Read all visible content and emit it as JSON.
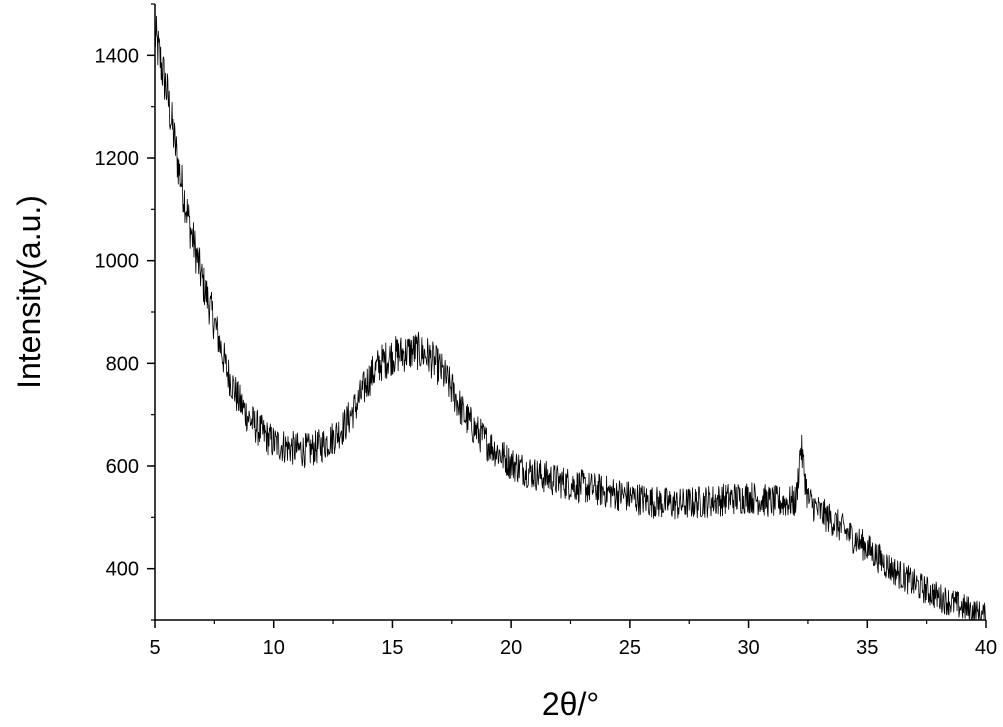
{
  "chart_data": {
    "type": "line",
    "title": "",
    "xlabel": "2θ/°",
    "ylabel": "Intensity(a.u.)",
    "xlim": [
      5,
      40
    ],
    "ylim": [
      300,
      1500
    ],
    "xticks": [
      5,
      10,
      15,
      20,
      25,
      30,
      35,
      40
    ],
    "yticks": [
      400,
      600,
      800,
      1000,
      1200,
      1400
    ],
    "x_tick_labels": [
      "5",
      "10",
      "15",
      "20",
      "25",
      "30",
      "35",
      "40"
    ],
    "y_tick_labels": [
      "400",
      "600",
      "800",
      "1000",
      "1200",
      "1400"
    ],
    "grid": false,
    "legend": "none",
    "line_color": "#000000",
    "series": [
      {
        "x": [
          5,
          5.5,
          6,
          6.5,
          7,
          7.5,
          8,
          8.5,
          9,
          9.5,
          10,
          10.5,
          11,
          11.5,
          12,
          12.5,
          13,
          13.5,
          14,
          14.5,
          15,
          15.5,
          16,
          16.5,
          17,
          17.5,
          18,
          18.5,
          19,
          19.5,
          20,
          21,
          22,
          23,
          24,
          25,
          26,
          27,
          28,
          29,
          30,
          31,
          32,
          32.2,
          32.5,
          33,
          33.5,
          34,
          35,
          36,
          37,
          38,
          39,
          40
        ],
        "y": [
          1440,
          1330,
          1180,
          1060,
          960,
          880,
          790,
          730,
          690,
          665,
          645,
          638,
          632,
          630,
          640,
          655,
          680,
          720,
          770,
          800,
          815,
          820,
          825,
          815,
          790,
          750,
          700,
          670,
          645,
          625,
          605,
          585,
          570,
          560,
          550,
          540,
          530,
          525,
          530,
          535,
          540,
          530,
          530,
          640,
          535,
          510,
          495,
          475,
          440,
          400,
          370,
          345,
          325,
          305
        ]
      }
    ]
  }
}
